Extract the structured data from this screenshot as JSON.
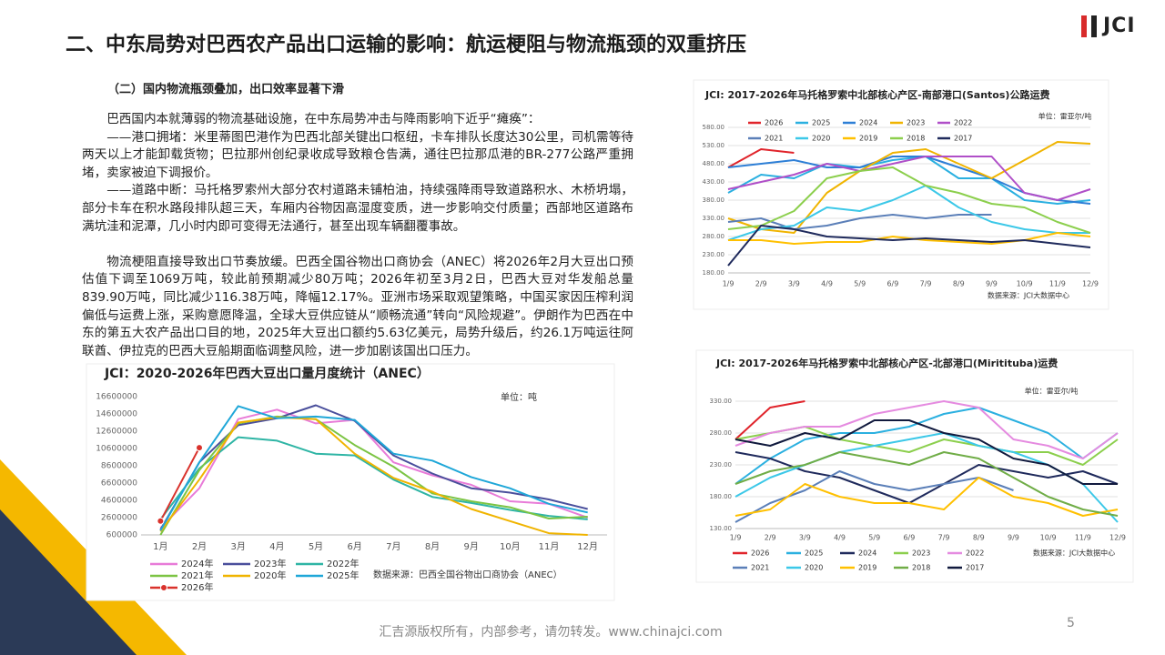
{
  "header": {
    "title": "二、中东局势对巴西农产品出口运输的影响：航运梗阻与物流瓶颈的双重挤压",
    "logo": "JCI"
  },
  "section": {
    "subtitle": "（二）国内物流瓶颈叠加，出口效率显著下滑",
    "paragraphs": [
      "巴西国内本就薄弱的物流基础设施，在中东局势冲击与降雨影响下近乎“瘫痪”：",
      "——港口拥堵：米里蒂图巴港作为巴西北部关键出口枢纽，卡车排队长度达30公里，司机需等待两天以上才能卸载货物；巴拉那州创纪录收成导致粮仓告满，通往巴拉那瓜港的BR-277公路严重拥堵，卖家被迫下调报价。",
      "——道路中断：马托格罗索州大部分农村道路未铺柏油，持续强降雨导致道路积水、木桥坍塌，部分卡车在积水路段排队超三天，车厢内谷物因高湿度变质，进一步影响交付质量；西部地区道路布满坑洼和泥潭，几小时内即可变得无法通行，甚至出现车辆翻覆事故。",
      "物流梗阻直接导致出口节奏放缓。巴西全国谷物出口商协会（ANEC）将2026年2月大豆出口预估值下调至1069万吨，较此前预期减少80万吨；2026年初至3月2日，巴西大豆对华发船总量839.90万吨，同比减少116.38万吨，降幅12.17%。亚洲市场采取观望策略，中国买家因压榨利润偏低与运费上涨，采购意愿降温，全球大豆供应链从“顺畅流通”转向“风险规避”。伊朗作为巴西在中东的第五大农产品出口目的地，2025年大豆出口额约5.63亿美元，局势升级后，约26.1万吨运往阿联酋、伊拉克的巴西大豆船期面临调整风险，进一步加剧该国出口压力。"
    ]
  },
  "chart_data": [
    {
      "type": "line",
      "title": "JCI: 2017-2026年马托格罗索中北部核心产区-南部港口(Santos)公路运费",
      "unit": "单位：雷亚尔/吨",
      "source": "数据来源：JCI大数据中心",
      "grid": true,
      "legend": "upper left",
      "categories": [
        "1/9",
        "2/9",
        "3/9",
        "4/9",
        "5/9",
        "6/9",
        "7/9",
        "8/9",
        "9/9",
        "10/9",
        "11/9",
        "12/9"
      ],
      "ylim": [
        180,
        580
      ],
      "yticks": [
        {
          "value": 580,
          "label": "580.00"
        },
        {
          "value": 530,
          "label": "530.00"
        },
        {
          "value": 480,
          "label": "480.00"
        },
        {
          "value": 430,
          "label": "430.00"
        },
        {
          "value": 380,
          "label": "380.00"
        },
        {
          "value": 330,
          "label": "330.00"
        },
        {
          "value": 280,
          "label": "280.00"
        },
        {
          "value": 230,
          "label": "230.00"
        },
        {
          "value": 180,
          "label": "180.00"
        }
      ],
      "series": [
        {
          "name": "2026",
          "color": "#e0242b",
          "values": [
            470,
            520,
            510,
            null,
            null,
            null,
            null,
            null,
            null,
            null,
            null,
            null
          ]
        },
        {
          "name": "2025",
          "color": "#2bb0e0",
          "values": [
            400,
            450,
            440,
            480,
            470,
            490,
            500,
            440,
            440,
            380,
            370,
            380
          ]
        },
        {
          "name": "2024",
          "color": "#2e7fd6",
          "values": [
            470,
            480,
            490,
            470,
            470,
            500,
            500,
            470,
            440,
            400,
            380,
            370
          ]
        },
        {
          "name": "2023",
          "color": "#f0b400",
          "values": [
            330,
            300,
            290,
            400,
            460,
            510,
            520,
            480,
            440,
            490,
            540,
            535
          ]
        },
        {
          "name": "2022",
          "color": "#b04fc8",
          "values": [
            410,
            430,
            450,
            480,
            460,
            480,
            500,
            500,
            500,
            400,
            380,
            410
          ]
        },
        {
          "name": "2021",
          "color": "#5b7fb8",
          "values": [
            320,
            330,
            300,
            310,
            330,
            340,
            330,
            340,
            340,
            null,
            null,
            null
          ]
        },
        {
          "name": "2020",
          "color": "#3cc8e8",
          "values": [
            270,
            300,
            310,
            360,
            350,
            380,
            420,
            360,
            320,
            300,
            290,
            290
          ]
        },
        {
          "name": "2019",
          "color": "#ffc000",
          "values": [
            270,
            270,
            260,
            265,
            265,
            280,
            270,
            265,
            260,
            270,
            290,
            280
          ]
        },
        {
          "name": "2018",
          "color": "#8ccf4d",
          "values": [
            300,
            310,
            350,
            440,
            460,
            470,
            420,
            400,
            370,
            360,
            320,
            290
          ]
        },
        {
          "name": "2017",
          "color": "#1f2a5c",
          "values": [
            200,
            310,
            300,
            280,
            275,
            270,
            275,
            270,
            265,
            270,
            260,
            250
          ]
        }
      ]
    },
    {
      "type": "line",
      "title": "JCI: 2017-2026年马托格罗索中北部核心产区-北部港口(Miritituba)运费",
      "unit": "单位：雷亚尔/吨",
      "source": "数据来源：JCI大数据中心",
      "grid": true,
      "legend": "bottom",
      "categories": [
        "1/9",
        "2/9",
        "3/9",
        "4/9",
        "5/9",
        "6/9",
        "7/9",
        "8/9",
        "9/9",
        "10/9",
        "11/9",
        "12/9"
      ],
      "ylim": [
        130,
        330
      ],
      "yticks": [
        {
          "value": 330,
          "label": "330.00"
        },
        {
          "value": 280,
          "label": "280.00"
        },
        {
          "value": 230,
          "label": "230.00"
        },
        {
          "value": 180,
          "label": "180.00"
        },
        {
          "value": 130,
          "label": "130.00"
        }
      ],
      "series": [
        {
          "name": "2026",
          "color": "#e0242b",
          "values": [
            270,
            320,
            330,
            null,
            null,
            null,
            null,
            null,
            null,
            null,
            null,
            null
          ]
        },
        {
          "name": "2025",
          "color": "#2bb0e0",
          "values": [
            200,
            240,
            270,
            280,
            280,
            290,
            310,
            320,
            300,
            280,
            240,
            280
          ]
        },
        {
          "name": "2024",
          "color": "#1f2a5c",
          "values": [
            250,
            240,
            220,
            210,
            190,
            170,
            200,
            230,
            220,
            210,
            220,
            200
          ]
        },
        {
          "name": "2023",
          "color": "#8ccf4d",
          "values": [
            270,
            280,
            290,
            270,
            260,
            250,
            270,
            260,
            250,
            250,
            230,
            270
          ]
        },
        {
          "name": "2022",
          "color": "#e58be0",
          "values": [
            260,
            280,
            290,
            290,
            310,
            320,
            330,
            320,
            270,
            260,
            240,
            280
          ]
        },
        {
          "name": "2021",
          "color": "#5b7fb8",
          "values": [
            140,
            170,
            190,
            220,
            200,
            190,
            200,
            210,
            190,
            null,
            null,
            null
          ]
        },
        {
          "name": "2020",
          "color": "#3cc8e8",
          "values": [
            180,
            210,
            230,
            250,
            260,
            270,
            280,
            260,
            250,
            230,
            200,
            140
          ]
        },
        {
          "name": "2019",
          "color": "#ffc000",
          "values": [
            150,
            160,
            200,
            180,
            170,
            170,
            160,
            210,
            180,
            170,
            150,
            160
          ]
        },
        {
          "name": "2018",
          "color": "#70ad47",
          "values": [
            200,
            220,
            230,
            250,
            240,
            230,
            250,
            240,
            210,
            180,
            160,
            150
          ]
        },
        {
          "name": "2017",
          "color": "#111a3e",
          "values": [
            270,
            260,
            280,
            270,
            300,
            300,
            280,
            270,
            240,
            230,
            200,
            200
          ]
        }
      ]
    },
    {
      "type": "line",
      "title": "JCI：2020-2026年巴西大豆出口量月度统计（ANEC）",
      "unit": "单位：吨",
      "source": "数据来源：巴西全国谷物出口商协会（ANEC）",
      "grid": false,
      "legend": "bottom",
      "categories": [
        "1月",
        "2月",
        "3月",
        "4月",
        "5月",
        "6月",
        "7月",
        "8月",
        "9月",
        "10月",
        "11月",
        "12月"
      ],
      "ylim": [
        600000,
        16600000
      ],
      "yticks": [
        16600000,
        14600000,
        12600000,
        10600000,
        8600000,
        6600000,
        4600000,
        2600000,
        600000
      ],
      "series": [
        {
          "name": "2024年",
          "color": "#e87bd8",
          "values": [
            1400000,
            6000000,
            14000000,
            15100000,
            13500000,
            13900000,
            9000000,
            7500000,
            6400000,
            4500000,
            4200000,
            2600000
          ]
        },
        {
          "name": "2023年",
          "color": "#4a4f9c",
          "values": [
            1200000,
            9000000,
            13300000,
            14100000,
            15600000,
            13800000,
            9800000,
            7700000,
            6000000,
            5500000,
            4700000,
            3600000
          ]
        },
        {
          "name": "2022年",
          "color": "#2fb5a5",
          "values": [
            2400000,
            8300000,
            11900000,
            11500000,
            10000000,
            9800000,
            7000000,
            5000000,
            4300000,
            3500000,
            2800000,
            2400000
          ]
        },
        {
          "name": "2021年",
          "color": "#7cc444",
          "values": [
            600000,
            8100000,
            13500000,
            14300000,
            14000000,
            11000000,
            8500000,
            5400000,
            4500000,
            3800000,
            2500000,
            2700000
          ]
        },
        {
          "name": "2020年",
          "color": "#f0b400",
          "values": [
            1000000,
            7000000,
            13600000,
            14200000,
            14000000,
            10000000,
            7200000,
            5600000,
            3600000,
            2200000,
            800000,
            600000
          ]
        },
        {
          "name": "2025年",
          "color": "#1fa7d8",
          "values": [
            1100000,
            9000000,
            15500000,
            14100000,
            14300000,
            13900000,
            10000000,
            9200000,
            7300000,
            6000000,
            4200000,
            3200000
          ]
        },
        {
          "name": "2026年",
          "color": "#d9322c",
          "markers": true,
          "values": [
            2200000,
            10690000,
            null,
            null,
            null,
            null,
            null,
            null,
            null,
            null,
            null,
            null
          ]
        }
      ]
    }
  ],
  "footer": {
    "text": "汇吉源版权所有，内部参考，请勿转发。www.chinajci.com",
    "page": "5"
  }
}
